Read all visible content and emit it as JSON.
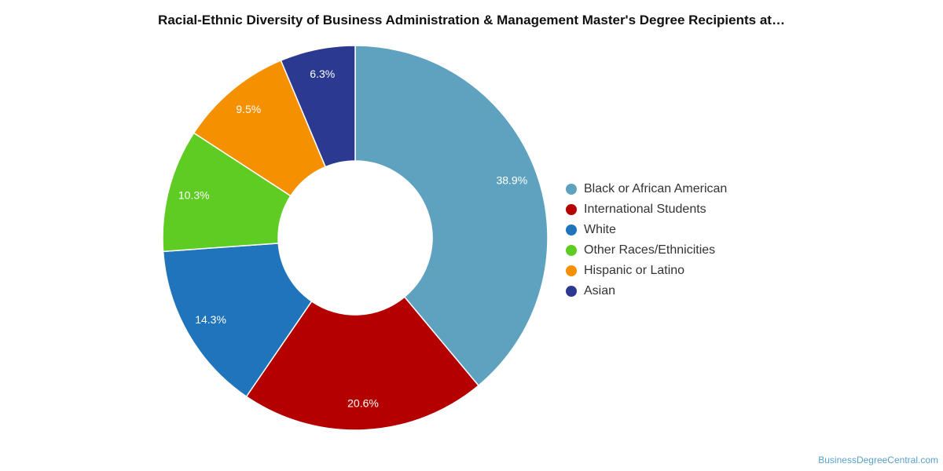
{
  "chart_data": {
    "type": "pie",
    "title": "Racial-Ethnic Diversity of Business Administration & Management Master's Degree Recipients at…",
    "donut": true,
    "legend_position": "right",
    "slices": [
      {
        "name": "Black or African American",
        "value": 38.9,
        "label": "38.9%",
        "color": "#5ea2c0"
      },
      {
        "name": "International Students",
        "value": 20.6,
        "label": "20.6%",
        "color": "#b50000"
      },
      {
        "name": "White",
        "value": 14.3,
        "label": "14.3%",
        "color": "#1f74bb"
      },
      {
        "name": "Other Races/Ethnicities",
        "value": 10.3,
        "label": "10.3%",
        "color": "#5fcc24"
      },
      {
        "name": "Hispanic or Latino",
        "value": 9.5,
        "label": "9.5%",
        "color": "#f59100"
      },
      {
        "name": "Asian",
        "value": 6.3,
        "label": "6.3%",
        "color": "#2b3990"
      }
    ]
  },
  "watermark": "BusinessDegreeCentral.com"
}
